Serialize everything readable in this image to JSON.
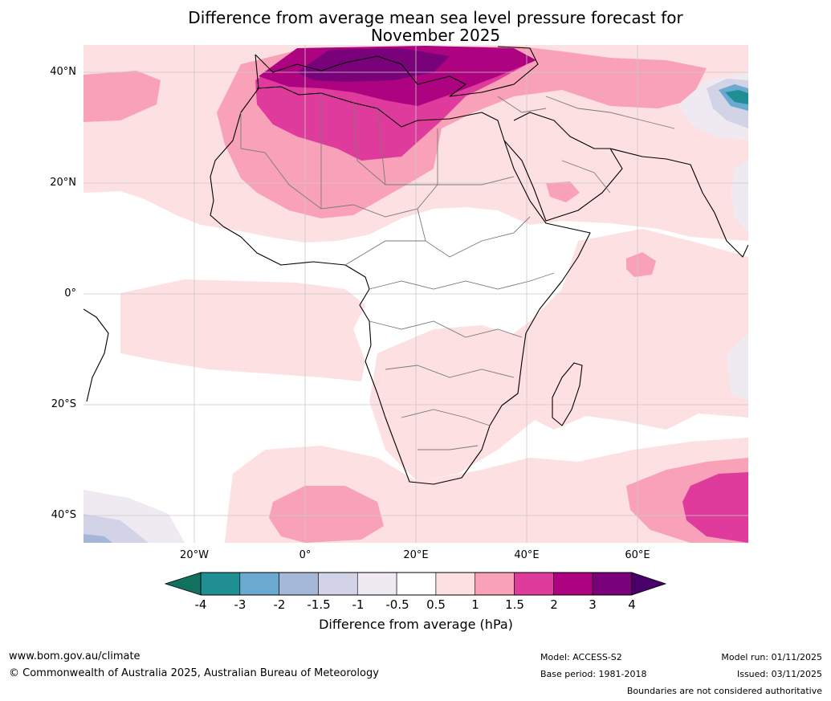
{
  "title": {
    "line1": "Difference from average mean sea level pressure forecast for",
    "line2": "November 2025"
  },
  "map": {
    "region": "Africa and surrounding oceans",
    "latitude_labels": [
      "40°N",
      "20°N",
      "0°",
      "20°S",
      "40°S"
    ],
    "longitude_labels": [
      "20°W",
      "0°",
      "20°E",
      "40°E",
      "60°E"
    ]
  },
  "legend": {
    "title": "Difference from average (hPa)",
    "tick_labels": [
      "-4",
      "-3",
      "-2",
      "-1.5",
      "-1",
      "-0.5",
      "0.5",
      "1",
      "1.5",
      "2",
      "3",
      "4"
    ],
    "colors": {
      "below_min": "#11705e",
      "c_neg4_neg3": "#1f8f94",
      "c_neg3_neg2": "#6aa9d0",
      "c_neg2_neg15": "#a5b7d6",
      "c_neg15_neg1": "#d2d3e6",
      "c_neg1_neg05": "#efe9f1",
      "c_neg05_05": "#ffffff",
      "c_05_1": "#fde0e1",
      "c_1_15": "#f9a1b8",
      "c_15_2": "#de3b9c",
      "c_2_3": "#ad0380",
      "c_3_4": "#79017a",
      "above_max": "#49006a"
    }
  },
  "footer": {
    "website": "www.bom.gov.au/climate",
    "copyright": "© Commonwealth of Australia 2025, Australian Bureau of Meteorology",
    "model": "Model: ACCESS-S2",
    "base_period": "Base period: 1981-2018",
    "model_run": "Model run: 01/11/2025",
    "issued": "Issued: 03/11/2025",
    "disclaimer": "Boundaries are not considered authoritative"
  }
}
